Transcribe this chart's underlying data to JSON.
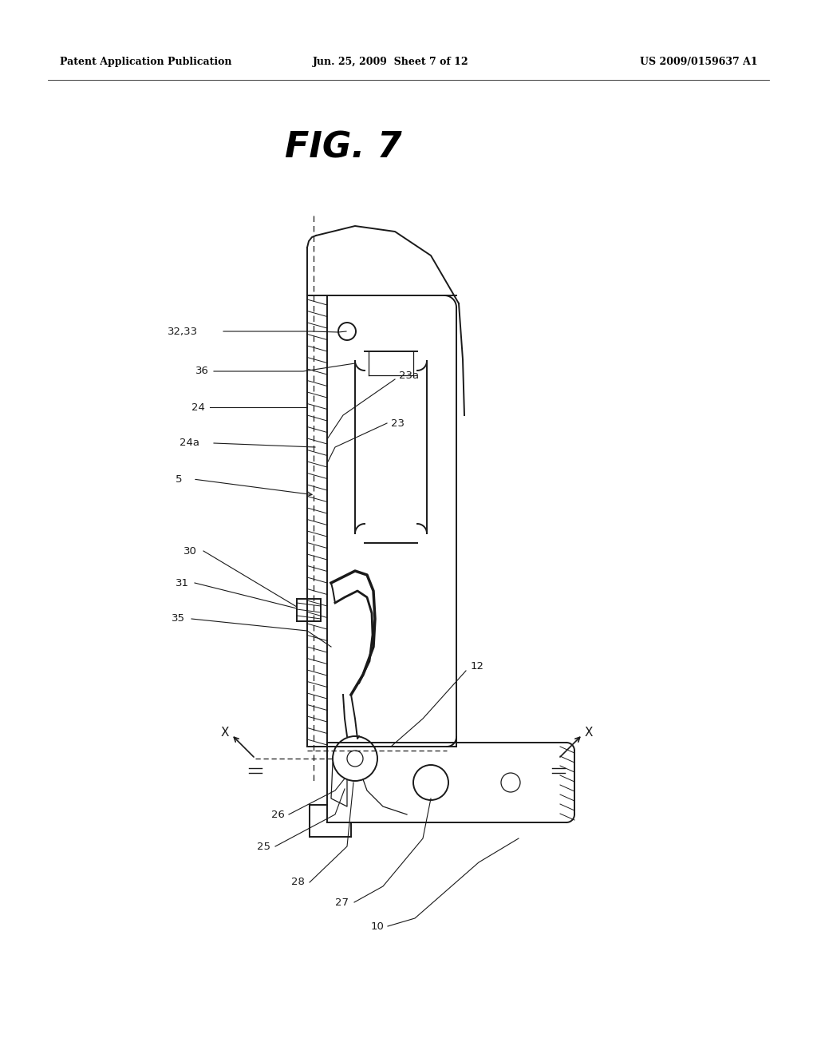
{
  "bg_color": "#ffffff",
  "header_left": "Patent Application Publication",
  "header_mid": "Jun. 25, 2009  Sheet 7 of 12",
  "header_right": "US 2009/0159637 A1",
  "fig_label": "FIG. 7",
  "line_color": "#1a1a1a",
  "lw_main": 1.4,
  "lw_thin": 0.9,
  "lw_hatch": 0.7,
  "label_fontsize": 9.5
}
